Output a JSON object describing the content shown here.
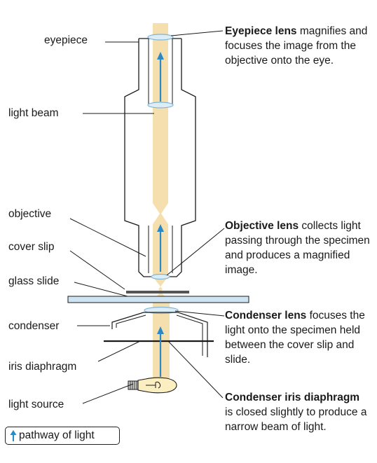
{
  "colors": {
    "light_beam": "#f6dfae",
    "light_arrow": "#2a8ac7",
    "lens": "#dcedf7",
    "lens_stroke": "#7fb5d6",
    "glass_slide": "#cfe4f2",
    "outline": "#1a1a1a"
  },
  "labels": {
    "eyepiece": "eyepiece",
    "light_beam": "light beam",
    "objective": "objective",
    "cover_slip": "cover slip",
    "glass_slide": "glass slide",
    "condenser": "condenser",
    "iris_diaphragm": "iris diaphragm",
    "light_source": "light source"
  },
  "descriptions": {
    "eyepiece_lens": {
      "title": "Eyepiece lens",
      "text": " magnifies and focuses the image from the objective onto the eye."
    },
    "objective_lens": {
      "title": "Objective lens",
      "text": " collects light passing through the specimen and produces a magnified image."
    },
    "condenser_lens": {
      "title": "Condenser lens",
      "text": " focuses the light onto the specimen held between the cover slip and slide."
    },
    "condenser_iris": {
      "title": "Condenser iris diaphragm",
      "text": " is closed slightly to produce a narrow beam of light."
    }
  },
  "legend": {
    "label": "pathway of light",
    "icon": "up-arrow-icon"
  }
}
